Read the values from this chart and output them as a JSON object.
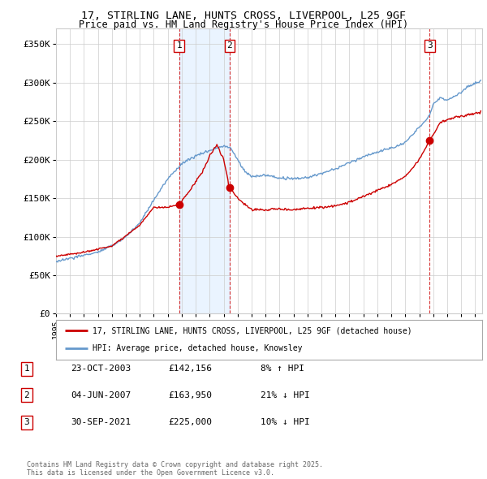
{
  "title_line1": "17, STIRLING LANE, HUNTS CROSS, LIVERPOOL, L25 9GF",
  "title_line2": "Price paid vs. HM Land Registry's House Price Index (HPI)",
  "ylim": [
    0,
    370000
  ],
  "xlim_start": 1995.0,
  "xlim_end": 2025.5,
  "sale_dates": [
    2003.81,
    2007.42,
    2021.75
  ],
  "sale_labels": [
    "1",
    "2",
    "3"
  ],
  "sale_prices": [
    142156,
    163950,
    225000
  ],
  "legend_line1": "17, STIRLING LANE, HUNTS CROSS, LIVERPOOL, L25 9GF (detached house)",
  "legend_line2": "HPI: Average price, detached house, Knowsley",
  "table_rows": [
    [
      "1",
      "23-OCT-2003",
      "£142,156",
      "8% ↑ HPI"
    ],
    [
      "2",
      "04-JUN-2007",
      "£163,950",
      "21% ↓ HPI"
    ],
    [
      "3",
      "30-SEP-2021",
      "£225,000",
      "10% ↓ HPI"
    ]
  ],
  "footer": "Contains HM Land Registry data © Crown copyright and database right 2025.\nThis data is licensed under the Open Government Licence v3.0.",
  "red_color": "#cc0000",
  "blue_color": "#6699cc",
  "shade_color": "#ddeeff",
  "grid_color": "#cccccc",
  "background_color": "#ffffff"
}
